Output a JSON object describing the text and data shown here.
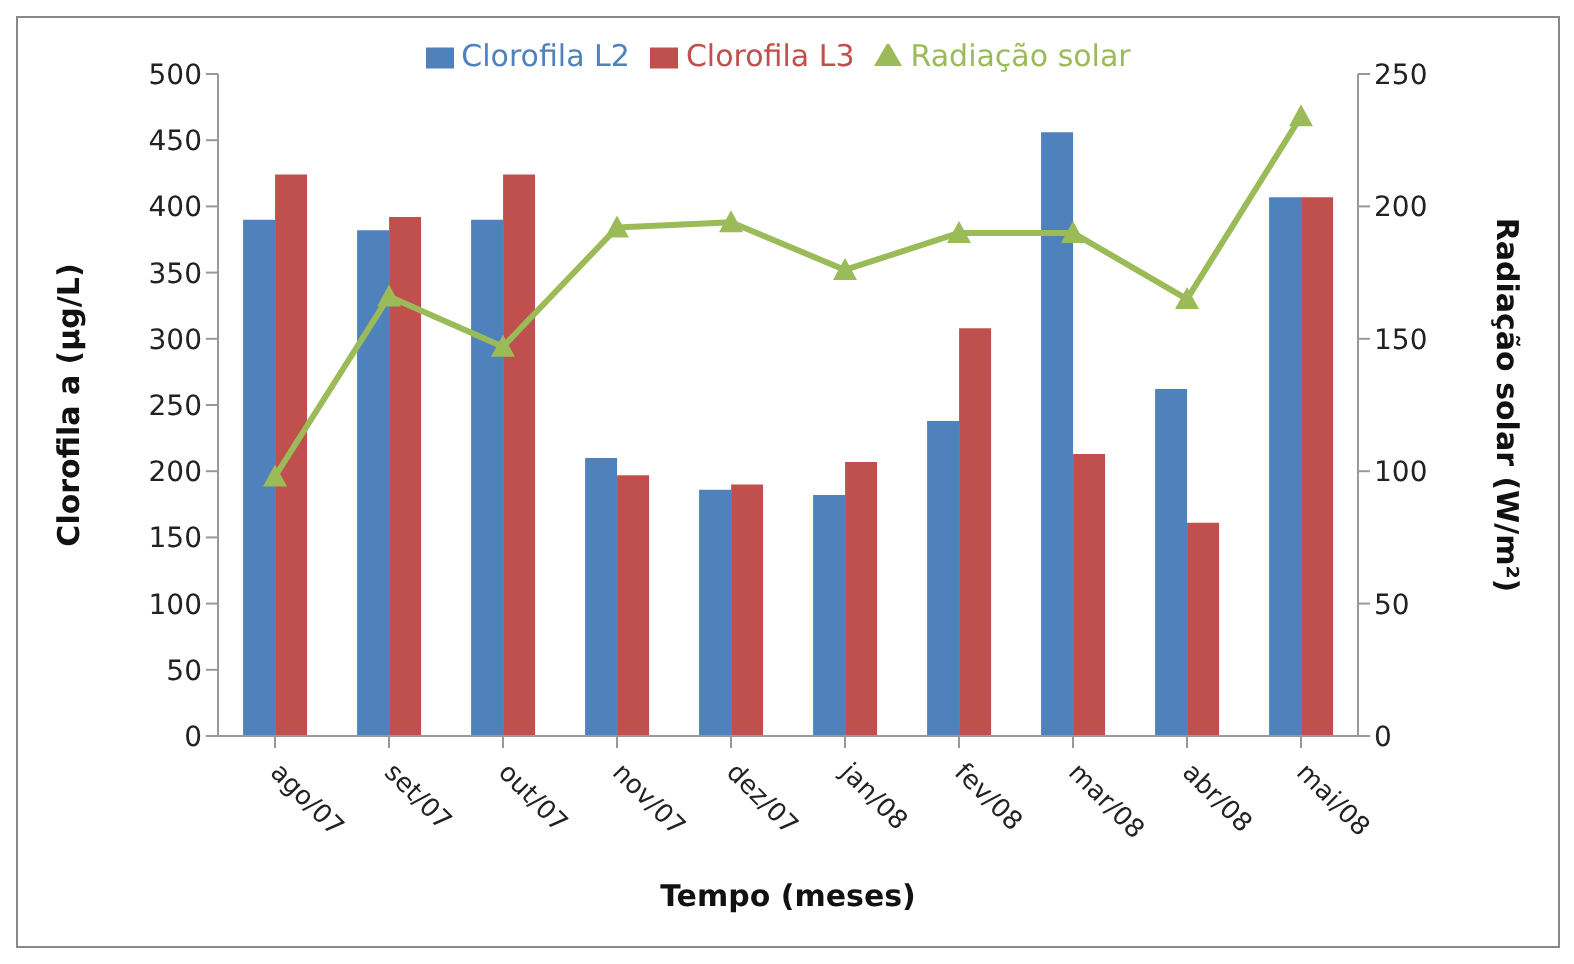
{
  "chart_data": {
    "type": "bar",
    "xlabel": "Tempo (meses)",
    "ylabel": "Clorofila a (µg/L)",
    "y2label": "Radiação solar (W/m²)",
    "categories": [
      "ago/07",
      "set/07",
      "out/07",
      "nov/07",
      "dez/07",
      "jan/08",
      "fev/08",
      "mar/08",
      "abr/08",
      "mai/08"
    ],
    "series": [
      {
        "name": "Clorofila L2",
        "color": "#4f81bd",
        "values": [
          390,
          382,
          390,
          210,
          186,
          182,
          238,
          456,
          262,
          407
        ]
      },
      {
        "name": "Clorofila L3",
        "color": "#c0504d",
        "values": [
          424,
          392,
          424,
          197,
          190,
          207,
          308,
          213,
          161,
          407
        ]
      },
      {
        "name": "Radiação solar",
        "type": "line",
        "axis": "y2",
        "color": "#9bbb59",
        "marker": "triangle",
        "values": [
          98,
          166,
          147,
          192,
          194,
          176,
          190,
          190,
          165,
          234
        ]
      }
    ],
    "ylim": [
      0,
      500
    ],
    "yticks": [
      0,
      50,
      100,
      150,
      200,
      250,
      300,
      350,
      400,
      450,
      500
    ],
    "y2lim": [
      0,
      250
    ],
    "y2ticks": [
      0,
      50,
      100,
      150,
      200,
      250
    ],
    "grid": false,
    "legend": "top"
  }
}
